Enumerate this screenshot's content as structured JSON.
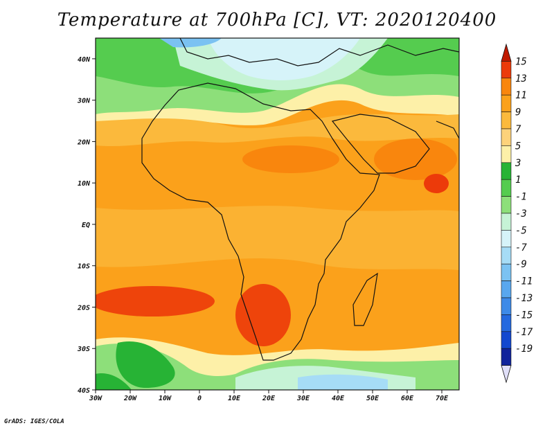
{
  "title": "Temperature at 700hPa [C], VT: 2020120400",
  "credit": "GrADS: IGES/COLA",
  "map": {
    "lon_range": [
      -30,
      75
    ],
    "lat_range": [
      -40,
      45
    ],
    "lon_ticks": [
      "30W",
      "20W",
      "10W",
      "0",
      "10E",
      "20E",
      "30E",
      "40E",
      "50E",
      "60E",
      "70E"
    ],
    "lat_ticks": [
      "40N",
      "30N",
      "20N",
      "10N",
      "EQ",
      "10S",
      "20S",
      "30S",
      "40S"
    ]
  },
  "colorbar": {
    "labels": [
      "15",
      "13",
      "11",
      "9",
      "7",
      "5",
      "3",
      "1",
      "-1",
      "-3",
      "-5",
      "-7",
      "-9",
      "-11",
      "-13",
      "-15",
      "-17",
      "-19"
    ],
    "colors": [
      "#c01a00",
      "#ec3a0a",
      "#f9860d",
      "#fba11b",
      "#fbb93c",
      "#fdd27b",
      "#fdf0a8",
      "#27b335",
      "#55cc4f",
      "#8ddf7a",
      "#c6f3d6",
      "#d6f3f9",
      "#a6dcf6",
      "#7bc2f2",
      "#59a7ee",
      "#3d8ae8",
      "#2469df",
      "#1248cf",
      "#10239b",
      "#e0dff8"
    ]
  },
  "legend_colors": {
    "cold": "#d6f3f9",
    "warm": "#fba11b",
    "hot": "#ec3a0a"
  }
}
